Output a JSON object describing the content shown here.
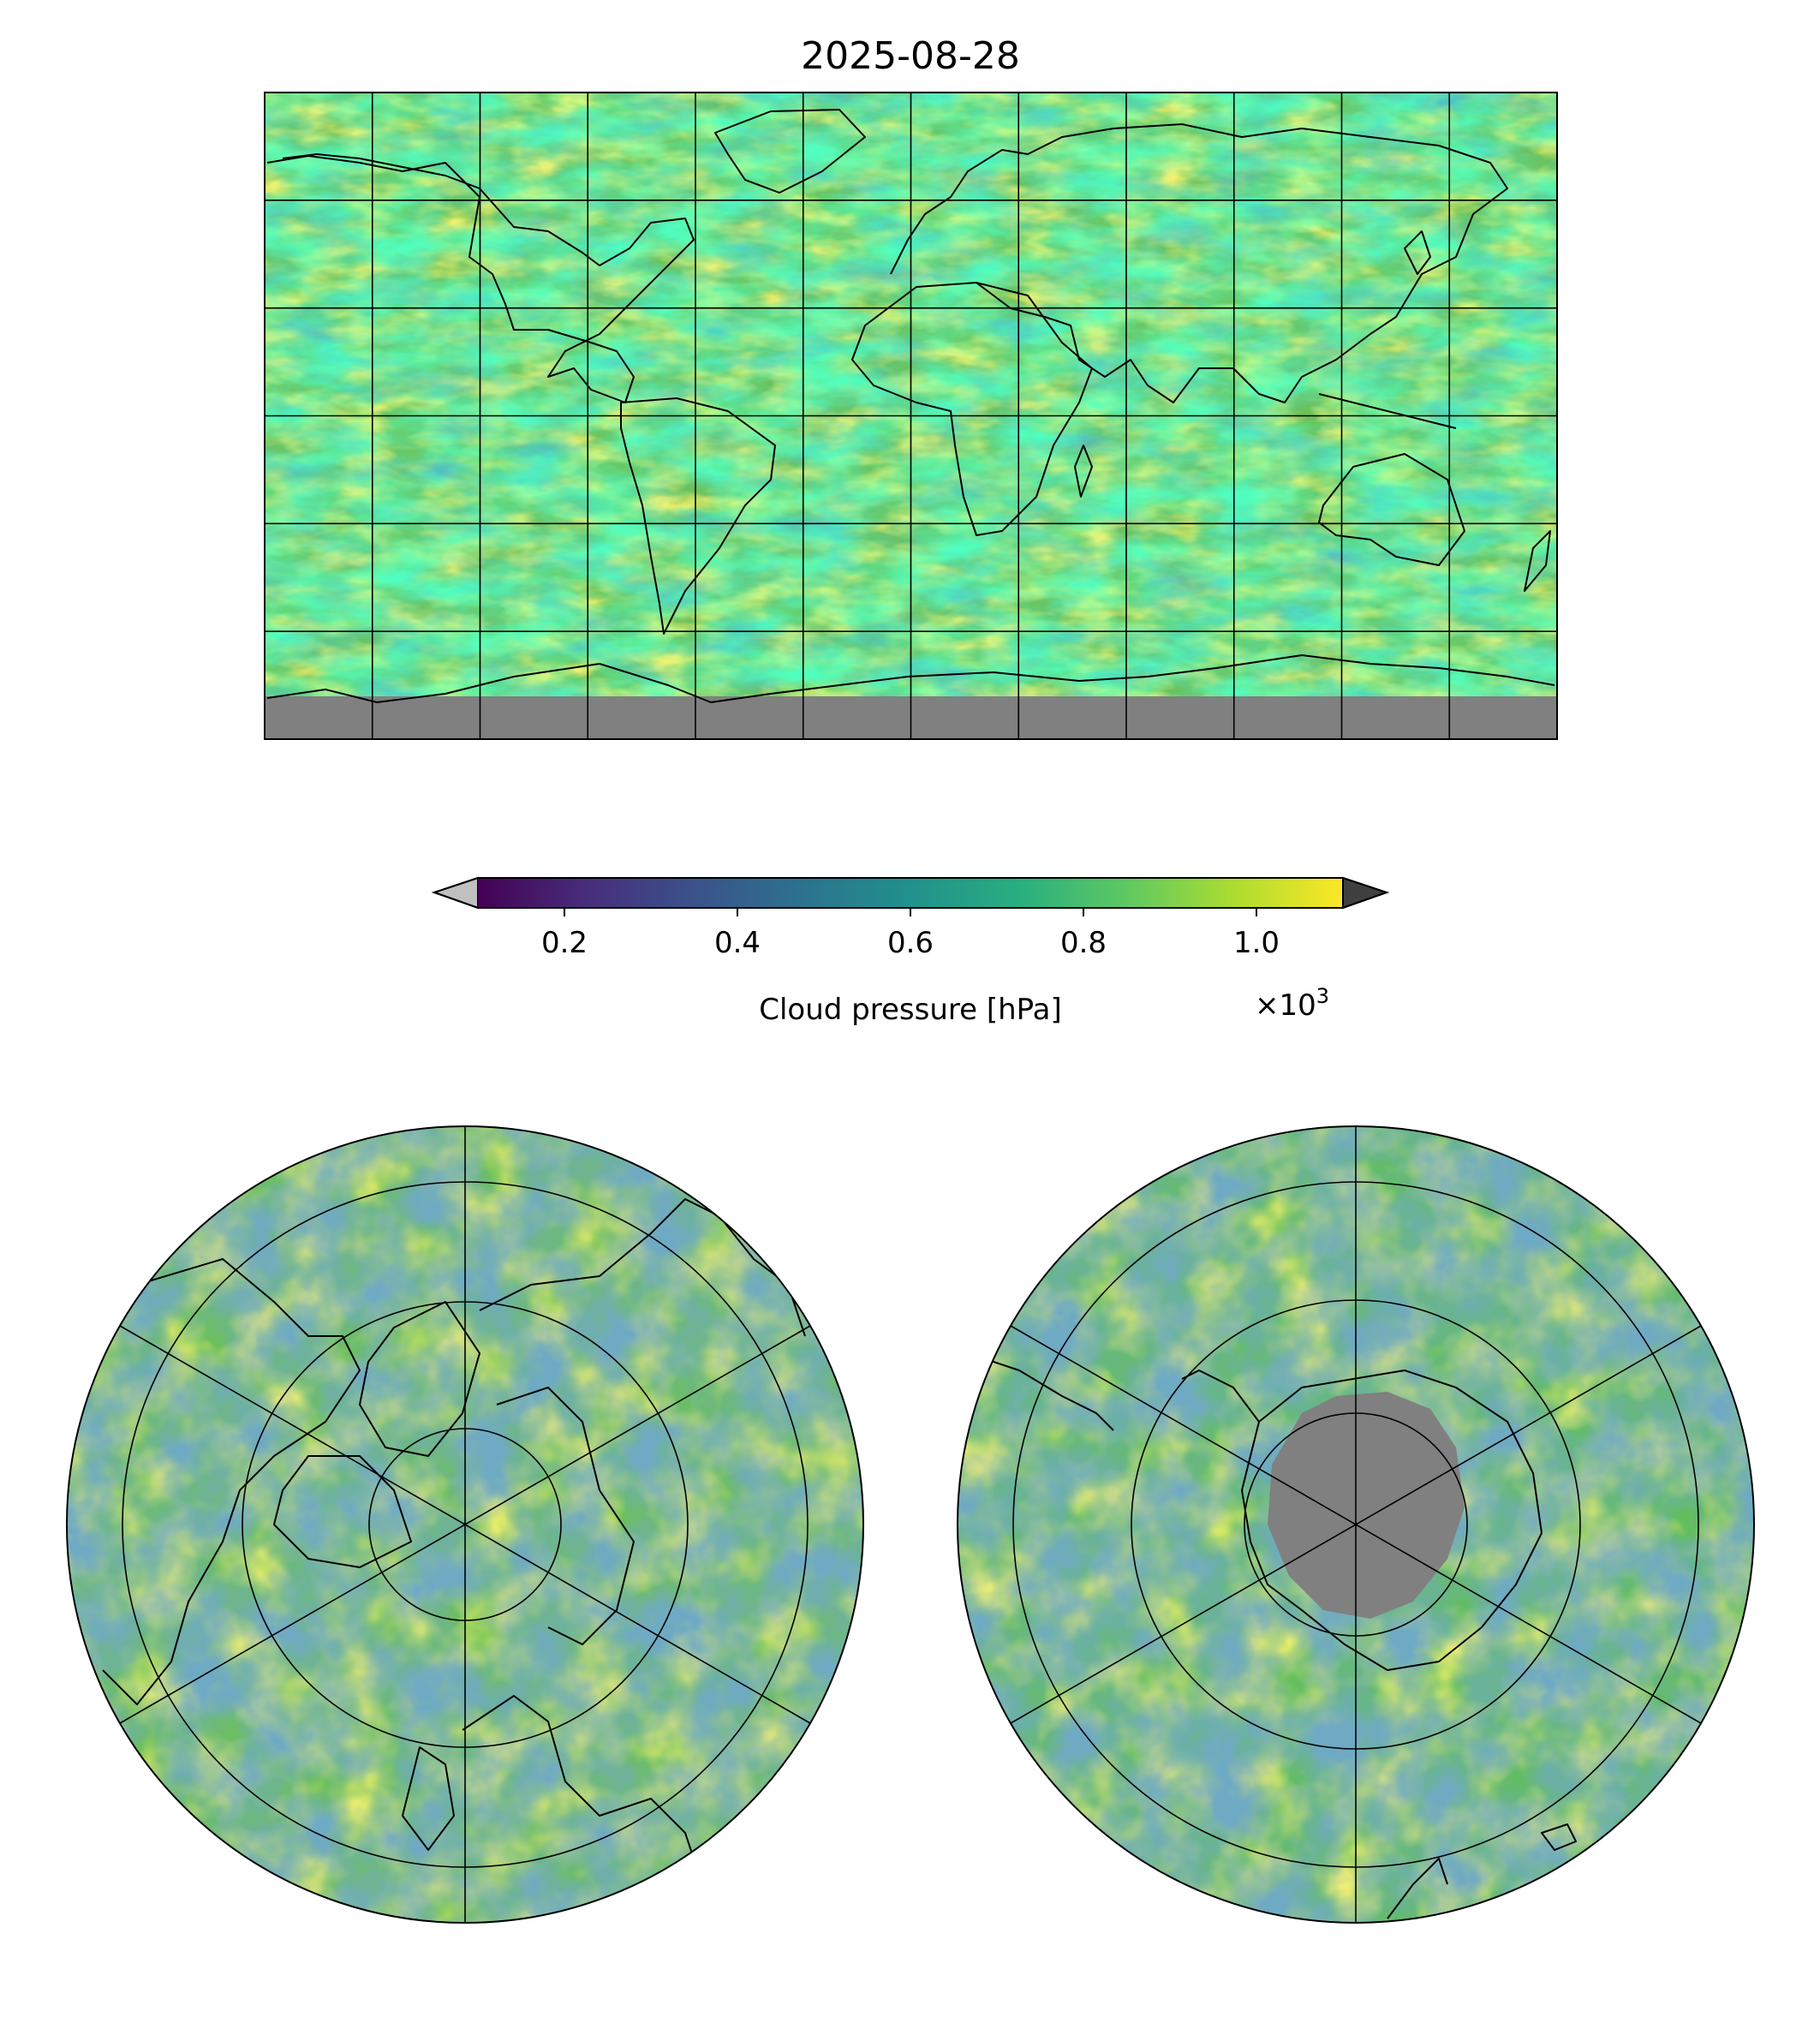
{
  "figure": {
    "title": "2025-08-28",
    "variable_label": "Cloud pressure [hPa]",
    "colorbar": {
      "colormap": "viridis",
      "range": [
        0.1,
        1.1
      ],
      "ticks": [
        "0.2",
        "0.4",
        "0.6",
        "0.8",
        "1.0"
      ],
      "tick_values": [
        0.2,
        0.4,
        0.6,
        0.8,
        1.0
      ],
      "multiplier_base": "×10",
      "multiplier_exponent": "3",
      "extend_low_color": "#c0c0c0",
      "extend_high_color": "#404040"
    },
    "missing_data_color": "#808080",
    "maps": [
      {
        "projection": "PlateCarree",
        "extent": "global",
        "gridlines": true
      },
      {
        "projection": "NorthPolarStereo",
        "gridlines": true
      },
      {
        "projection": "SouthPolarStereo",
        "gridlines": true
      }
    ]
  }
}
